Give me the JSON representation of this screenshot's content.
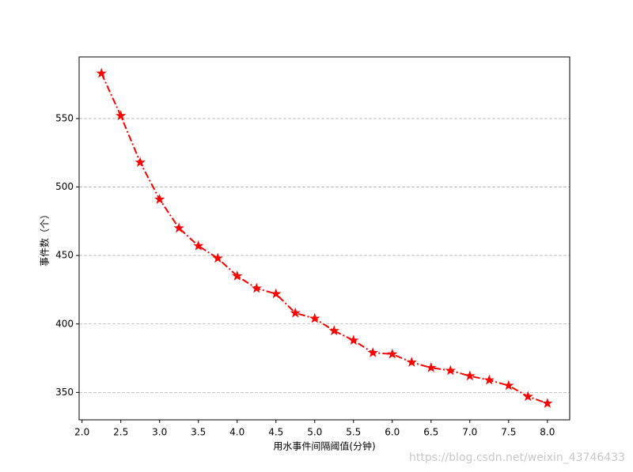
{
  "chart_data": {
    "type": "line",
    "x_label": "用水事件间隔阈值(分钟)",
    "y_label": "事件数（个）",
    "watermark": "https://blog.csdn.net/weixin_43746433",
    "x": [
      2.25,
      2.5,
      2.75,
      3.0,
      3.25,
      3.5,
      3.75,
      4.0,
      4.25,
      4.5,
      4.75,
      5.0,
      5.25,
      5.5,
      5.75,
      6.0,
      6.25,
      6.5,
      6.75,
      7.0,
      7.25,
      7.5,
      7.75,
      8.0
    ],
    "series": [
      {
        "color": "#ff0000",
        "values": [
          583,
          552,
          518,
          491,
          470,
          457,
          448,
          435,
          426,
          422,
          408,
          404,
          395,
          388,
          379,
          378,
          372,
          368,
          366,
          362,
          359,
          355,
          347,
          342
        ]
      }
    ],
    "xlim": [
      1.9625,
      8.2875
    ],
    "ylim": [
      330,
      595
    ],
    "xticks": [
      {
        "value": 2,
        "label": "2.0"
      },
      2.5,
      {
        "value": 3,
        "label": "3.0"
      },
      3.5,
      {
        "value": 4,
        "label": "4.0"
      },
      4.5,
      {
        "value": 5,
        "label": "5.0"
      },
      5.5,
      {
        "value": 6,
        "label": "6.0"
      },
      6.5,
      {
        "value": 7,
        "label": "7.0"
      },
      7.5,
      {
        "value": 8,
        "label": "8.0"
      }
    ],
    "yticks": [
      350,
      400,
      450,
      500,
      550
    ],
    "grid": "y"
  }
}
